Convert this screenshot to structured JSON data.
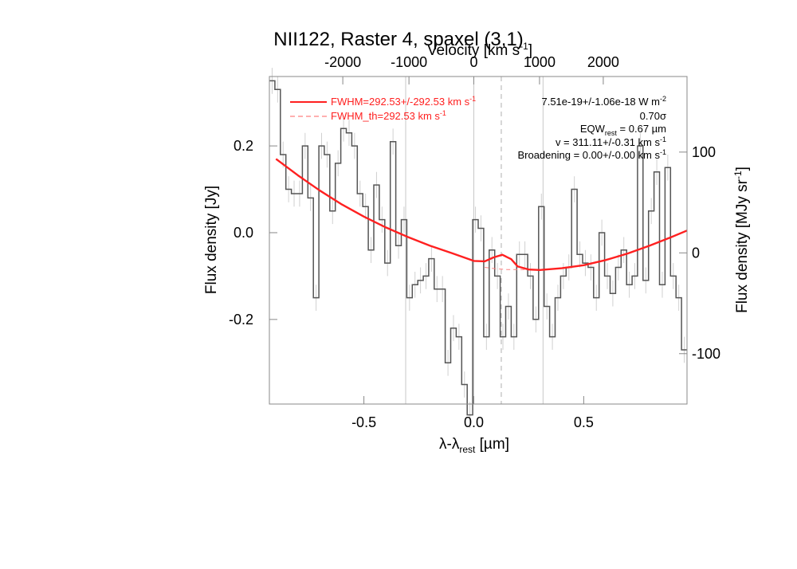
{
  "chart_data": {
    "type": "line",
    "title": "NII122, Raster 4, spaxel (3,1)",
    "xlabel": "λ-λ",
    "xlabel_sub": "rest",
    "xlabel_unit": " [µm]",
    "ylabel_left": "Flux density [Jy]",
    "ylabel_right_prefix": "Flux density [MJy sr",
    "ylabel_right_exp": "-1",
    "ylabel_right_suffix": "]",
    "top_axis_label_prefix": "Velocity [km s",
    "top_axis_label_exp": "-1",
    "top_axis_label_suffix": "]",
    "xlim": [
      -0.93,
      0.97
    ],
    "ylim": [
      -0.395,
      0.36
    ],
    "right_ylim": [
      -150,
      175
    ],
    "x_ticks": [
      -0.5,
      0.0,
      0.5
    ],
    "x_tick_labels": [
      "-0.5",
      "0.0",
      "0.5"
    ],
    "y_ticks": [
      -0.2,
      0.0,
      0.2
    ],
    "y_tick_labels": [
      "-0.2",
      "0.0",
      "0.2"
    ],
    "right_ticks": [
      -100,
      0,
      100
    ],
    "right_tick_labels": [
      "-100",
      "0",
      "100"
    ],
    "top_ticks": [
      -2000,
      -1000,
      0,
      1000,
      2000
    ],
    "top_tick_labels": [
      "-2000",
      "-1000",
      "0",
      "1000",
      "2000"
    ],
    "top_axis_x_at_velocity": [
      [
        -2000,
        -0.596
      ],
      [
        -1000,
        -0.295
      ],
      [
        0,
        0.0
      ],
      [
        1000,
        0.299
      ],
      [
        2000,
        0.589
      ]
    ],
    "vlines": [
      -0.31,
      0.0,
      0.315
    ],
    "vline_dashed": 0.125,
    "series": [
      {
        "name": "spectrum",
        "style": "steps",
        "x": [
          -0.93,
          -0.905,
          -0.88,
          -0.855,
          -0.83,
          -0.805,
          -0.78,
          -0.755,
          -0.73,
          -0.705,
          -0.68,
          -0.655,
          -0.63,
          -0.605,
          -0.58,
          -0.555,
          -0.53,
          -0.505,
          -0.48,
          -0.455,
          -0.43,
          -0.405,
          -0.38,
          -0.355,
          -0.33,
          -0.305,
          -0.28,
          -0.255,
          -0.23,
          -0.205,
          -0.18,
          -0.155,
          -0.13,
          -0.105,
          -0.08,
          -0.055,
          -0.03,
          -0.005,
          0.02,
          0.045,
          0.07,
          0.095,
          0.12,
          0.145,
          0.17,
          0.195,
          0.22,
          0.245,
          0.27,
          0.295,
          0.32,
          0.345,
          0.37,
          0.395,
          0.42,
          0.445,
          0.47,
          0.495,
          0.52,
          0.545,
          0.57,
          0.595,
          0.62,
          0.645,
          0.67,
          0.695,
          0.72,
          0.745,
          0.77,
          0.795,
          0.82,
          0.845,
          0.87,
          0.895,
          0.92,
          0.945
        ],
        "values": [
          0.35,
          0.33,
          0.18,
          0.1,
          0.09,
          0.09,
          0.2,
          0.08,
          -0.15,
          0.2,
          0.18,
          0.05,
          0.16,
          0.24,
          0.23,
          0.2,
          0.09,
          0.06,
          -0.04,
          0.11,
          0.03,
          -0.07,
          0.21,
          -0.03,
          0.03,
          -0.15,
          -0.12,
          -0.11,
          -0.1,
          -0.06,
          -0.13,
          -0.13,
          -0.3,
          -0.22,
          -0.24,
          -0.35,
          -0.42,
          0.03,
          0.01,
          -0.24,
          -0.04,
          -0.1,
          -0.24,
          -0.17,
          -0.24,
          -0.05,
          -0.05,
          -0.1,
          -0.2,
          0.06,
          -0.17,
          -0.24,
          -0.15,
          -0.1,
          -0.08,
          0.1,
          -0.05,
          -0.07,
          -0.08,
          -0.15,
          0.0,
          -0.1,
          -0.14,
          -0.08,
          -0.04,
          -0.12,
          -0.1,
          0.2,
          -0.11,
          0.05,
          0.14,
          -0.12,
          0.15,
          -0.1,
          -0.15,
          -0.27
        ],
        "color": "#555555"
      },
      {
        "name": "FWHM=292.53+/-292.53 km s",
        "style": "line",
        "x": [
          -0.9,
          -0.8,
          -0.7,
          -0.6,
          -0.5,
          -0.4,
          -0.3,
          -0.2,
          -0.1,
          0.0,
          0.05,
          0.09,
          0.13,
          0.17,
          0.2,
          0.25,
          0.3,
          0.4,
          0.5,
          0.6,
          0.7,
          0.8,
          0.9,
          0.97
        ],
        "values": [
          0.17,
          0.132,
          0.097,
          0.065,
          0.037,
          0.012,
          -0.01,
          -0.03,
          -0.047,
          -0.065,
          -0.066,
          -0.057,
          -0.051,
          -0.061,
          -0.078,
          -0.085,
          -0.086,
          -0.082,
          -0.075,
          -0.063,
          -0.048,
          -0.03,
          -0.01,
          0.005
        ],
        "color": "#ff2020"
      },
      {
        "name": "FWHM_th=292.53 km s",
        "style": "dashed",
        "x": [
          0.05,
          0.1,
          0.15,
          0.2,
          0.25,
          0.3
        ],
        "values": [
          -0.08,
          -0.083,
          -0.085,
          -0.085,
          -0.085,
          -0.085
        ],
        "color": "#ff8080"
      }
    ],
    "legend": [
      {
        "label": "FWHM=292.53+/-292.53 km s",
        "exp": "-1",
        "style": "solid"
      },
      {
        "label": "FWHM_th=292.53 km s",
        "exp": "-1",
        "style": "dashed"
      }
    ],
    "annotations": {
      "flux": "7.51e-19+/-1.06e-18 W m",
      "flux_exp": "-2",
      "sigma": "0.70σ",
      "eqw_a": "EQW",
      "eqw_sub": "rest",
      "eqw_b": " = 0.67 µm",
      "v": "v = 311.11+/-0.31 km s",
      "v_exp": "-1",
      "broadening": "Broadening = 0.00+/-0.00 km s",
      "broadening_exp": "-1"
    }
  }
}
